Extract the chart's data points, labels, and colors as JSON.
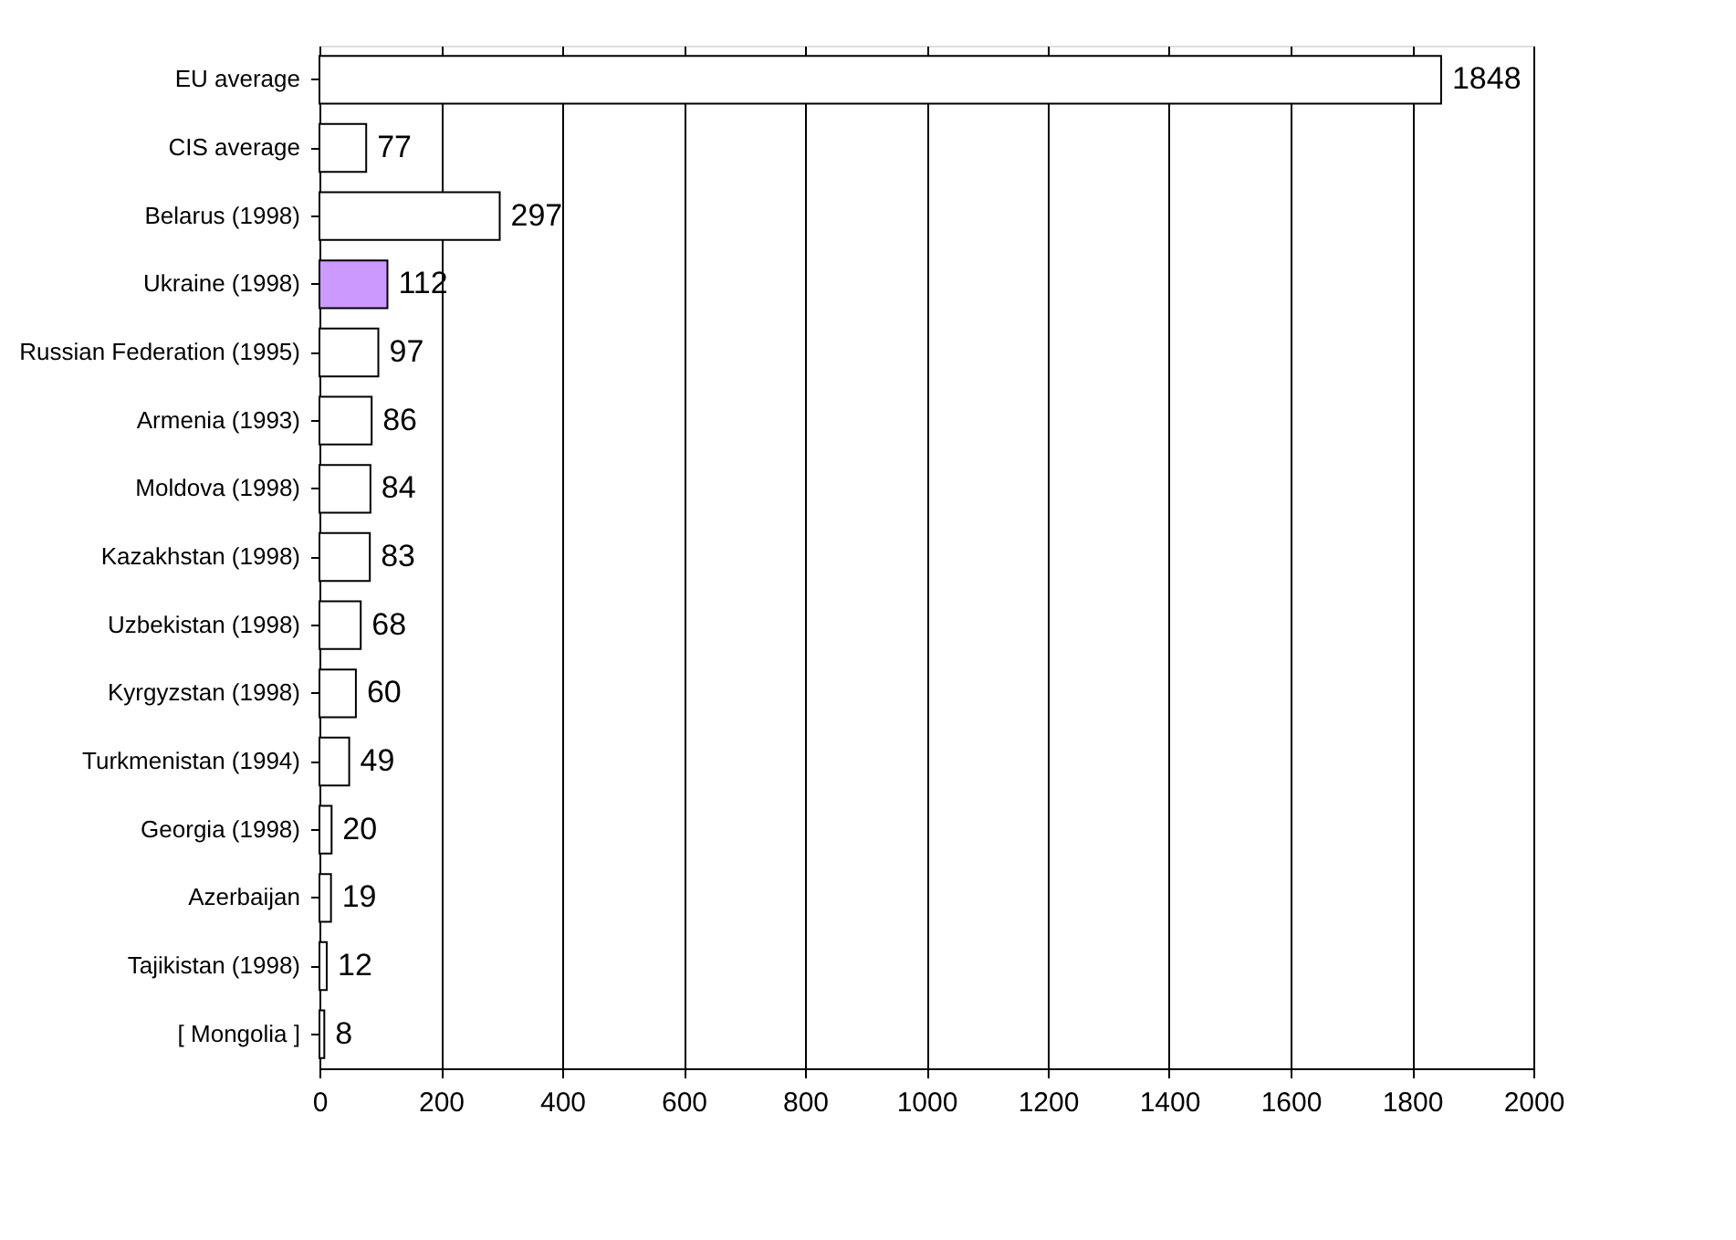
{
  "chart_data": {
    "type": "bar",
    "orientation": "horizontal",
    "categories": [
      "EU average",
      "CIS average",
      "Belarus (1998)",
      "Ukraine (1998)",
      "Russian Federation (1995)",
      "Armenia (1993)",
      "Moldova (1998)",
      "Kazakhstan (1998)",
      "Uzbekistan (1998)",
      "Kyrgyzstan (1998)",
      "Turkmenistan (1994)",
      "Georgia (1998)",
      "Azerbaijan",
      "Tajikistan (1998)",
      "[ Mongolia ]"
    ],
    "values": [
      1848,
      77,
      297,
      112,
      97,
      86,
      84,
      83,
      68,
      60,
      49,
      20,
      19,
      12,
      8
    ],
    "colors": [
      "#ffffff",
      "#ffffff",
      "#ffffff",
      "#cc99ff",
      "#ffffff",
      "#ffffff",
      "#ffffff",
      "#ffffff",
      "#ffffff",
      "#ffffff",
      "#ffffff",
      "#ffffff",
      "#ffffff",
      "#ffffff",
      "#ffffff"
    ],
    "xlim": [
      0,
      2000
    ],
    "xticks": [
      0,
      200,
      400,
      600,
      800,
      1000,
      1200,
      1400,
      1600,
      1800,
      2000
    ],
    "grid": "x",
    "data_labels": true
  }
}
